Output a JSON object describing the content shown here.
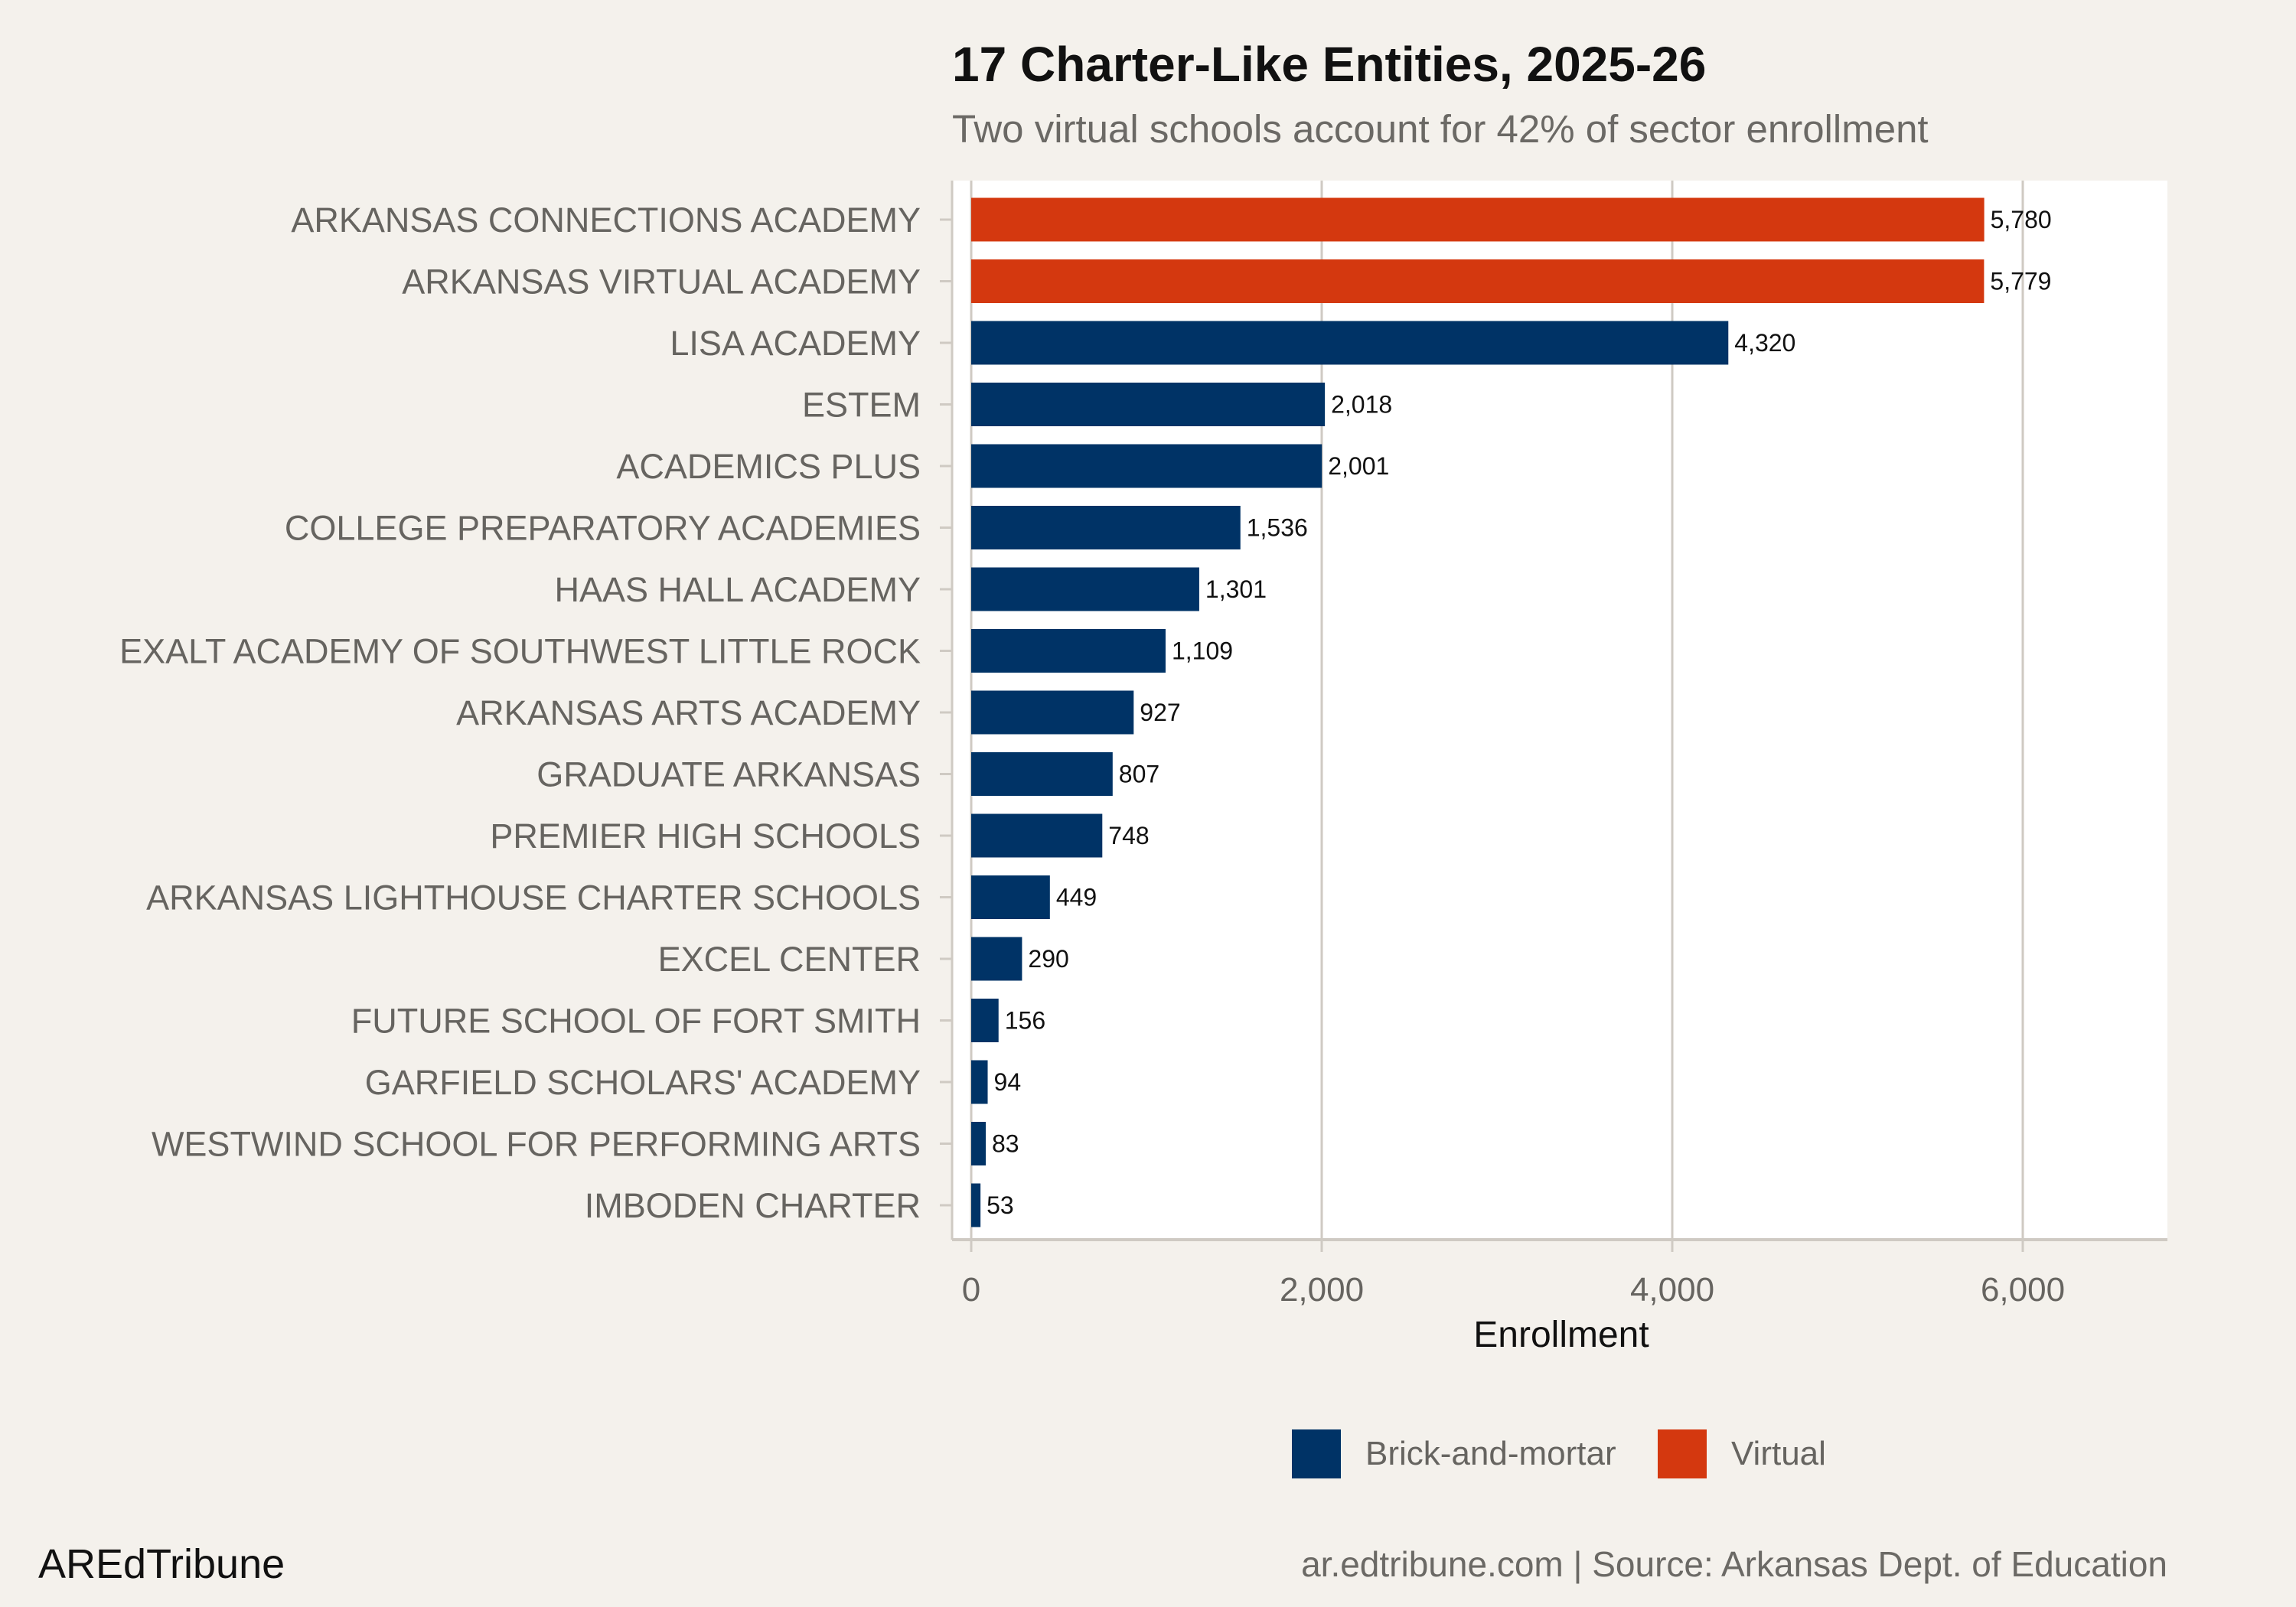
{
  "chart_data": {
    "type": "bar",
    "orientation": "horizontal",
    "title": "17 Charter-Like Entities, 2025-26",
    "subtitle": "Two virtual schools account for 42% of sector enrollment",
    "xlabel": "Enrollment",
    "ylabel": "",
    "xlim": [
      0,
      6800
    ],
    "x_ticks": [
      0,
      2000,
      4000,
      6000
    ],
    "x_tick_labels": [
      "0",
      "2,000",
      "4,000",
      "6,000"
    ],
    "grid": true,
    "legend_placement": "bottom",
    "legend": [
      {
        "label": "Brick-and-mortar",
        "color": "#003366"
      },
      {
        "label": "Virtual",
        "color": "#d4380f"
      }
    ],
    "categories": [
      "ARKANSAS CONNECTIONS ACADEMY",
      "ARKANSAS VIRTUAL ACADEMY",
      "LISA ACADEMY",
      "ESTEM",
      "ACADEMICS PLUS",
      "COLLEGE PREPARATORY ACADEMIES",
      "HAAS HALL ACADEMY",
      "EXALT ACADEMY OF SOUTHWEST LITTLE ROCK",
      "ARKANSAS ARTS ACADEMY",
      "GRADUATE ARKANSAS",
      "PREMIER HIGH SCHOOLS",
      "ARKANSAS LIGHTHOUSE CHARTER SCHOOLS",
      "EXCEL CENTER",
      "FUTURE SCHOOL OF FORT SMITH",
      "GARFIELD SCHOLARS' ACADEMY",
      "WESTWIND SCHOOL FOR PERFORMING ARTS",
      "IMBODEN CHARTER"
    ],
    "values": [
      5780,
      5779,
      4320,
      2018,
      2001,
      1536,
      1301,
      1109,
      927,
      807,
      748,
      449,
      290,
      156,
      94,
      83,
      53
    ],
    "value_labels": [
      "5,780",
      "5,779",
      "4,320",
      "2,018",
      "2,001",
      "1,536",
      "1,301",
      "1,109",
      "927",
      "807",
      "748",
      "449",
      "290",
      "156",
      "94",
      "83",
      "53"
    ],
    "types": [
      "Virtual",
      "Virtual",
      "Brick-and-mortar",
      "Brick-and-mortar",
      "Brick-and-mortar",
      "Brick-and-mortar",
      "Brick-and-mortar",
      "Brick-and-mortar",
      "Brick-and-mortar",
      "Brick-and-mortar",
      "Brick-and-mortar",
      "Brick-and-mortar",
      "Brick-and-mortar",
      "Brick-and-mortar",
      "Brick-and-mortar",
      "Brick-and-mortar",
      "Brick-and-mortar"
    ]
  },
  "branding": "AREdTribune",
  "footer": "ar.edtribune.com | Source: Arkansas Dept. of Education",
  "colors": {
    "background": "#f4f1ec",
    "panel": "#ffffff",
    "grid": "#cfcac3",
    "label_text": "#666460"
  }
}
